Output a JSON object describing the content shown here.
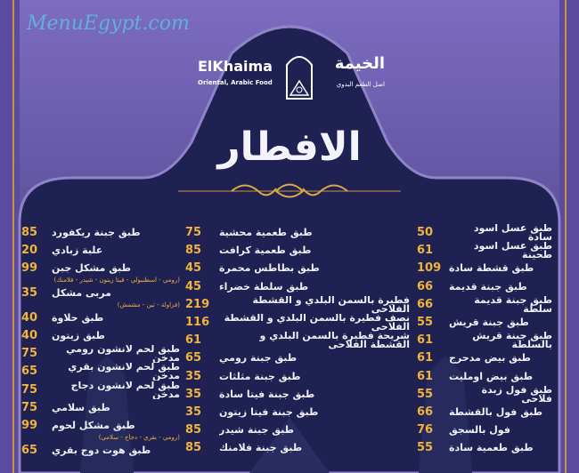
{
  "brand": {
    "name_en": "ElKhaima",
    "tagline_en": "Oriental, Arabic Food",
    "name_ar": "الخيمة",
    "tagline_ar": "اصل الطعم البدوي"
  },
  "section_title": "الافطار",
  "watermark": "MenuEgypt.com",
  "colors": {
    "background": "#1f2152",
    "frame": "#5b4b9e",
    "price": "#f0b43a",
    "text": "#f1f0f6"
  },
  "columns": [
    {
      "items": [
        {
          "name": "طبق جبنة ريكفورد",
          "price": "85"
        },
        {
          "name": "علبة زبادي",
          "price": "20"
        },
        {
          "name": "طبق مشكل جبن",
          "price": "99",
          "note": "(رومي - اسطنبولي - فيتا زيتون - شيدر - فلامنك)"
        },
        {
          "name": "مربى مشكل",
          "price": "35",
          "note": "(فراولة - تين - مشمش)"
        },
        {
          "name": "طبق حلاوة",
          "price": "40"
        },
        {
          "name": "طبق زيتون",
          "price": "40"
        },
        {
          "name": "طبق لحم لانشون رومي مدخن",
          "price": "75"
        },
        {
          "name": "طبق لحم لانشون بقري مدخن",
          "price": "65"
        },
        {
          "name": "طبق لحم لانشون دجاج مدخن",
          "price": "75"
        },
        {
          "name": "طبق سلامي",
          "price": "75"
        },
        {
          "name": "طبق مشكل لحوم",
          "price": "99",
          "note": "(رومي - بقري - دجاج - سلامي)"
        },
        {
          "name": "طبق هوت دوج بقري",
          "price": "65"
        }
      ]
    },
    {
      "items": [
        {
          "name": "طبق طعمية محشية",
          "price": "75"
        },
        {
          "name": "طبق طعمية كرافت",
          "price": "85"
        },
        {
          "name": "طبق بطاطس محمرة",
          "price": "45"
        },
        {
          "name": "طبق سلطة خضراء",
          "price": "45"
        },
        {
          "name": "فطيرة بالسمن البلدي و القشطة الفلاحي",
          "price": "219"
        },
        {
          "name": "نصف فطيرة بالسمن البلدي و القشطة الفلاحي",
          "price": "116"
        },
        {
          "name": "شريحة فطيرة بالسمن البلدي و القشطة الفلاحي",
          "price": "61"
        },
        {
          "name": "طبق جبنة رومي",
          "price": "65"
        },
        {
          "name": "طبق جبنة مثلثات",
          "price": "35"
        },
        {
          "name": "طبق جبنة فيتا سادة",
          "price": "35"
        },
        {
          "name": "طبق جبنة فيتا زيتون",
          "price": "35"
        },
        {
          "name": "طبق جبنة شيدر",
          "price": "85"
        },
        {
          "name": "طبق جبنة فلامنك",
          "price": "85"
        }
      ]
    },
    {
      "items": [
        {
          "name": "طبق عسل اسود سادة",
          "price": "50"
        },
        {
          "name": "طبق عسل اسود طحينة",
          "price": "61"
        },
        {
          "name": "طبق قشطة سادة",
          "price": "109"
        },
        {
          "name": "طبق جبنة قديمة",
          "price": "66"
        },
        {
          "name": "طبق جبنة قديمة سلطة",
          "price": "66"
        },
        {
          "name": "طبق جبنة قريش",
          "price": "55"
        },
        {
          "name": "طبق جبنة قريش بالسلطة",
          "price": "61"
        },
        {
          "name": "طبق بيض مدحرج",
          "price": "61"
        },
        {
          "name": "طبق بيض اومليت",
          "price": "61"
        },
        {
          "name": "طبق فول زبدة فلاحي",
          "price": "55"
        },
        {
          "name": "طبق فول بالقشطة",
          "price": "66"
        },
        {
          "name": "فول بالسجق",
          "price": "76"
        },
        {
          "name": "طبق طعمية سادة",
          "price": "55"
        }
      ]
    }
  ]
}
